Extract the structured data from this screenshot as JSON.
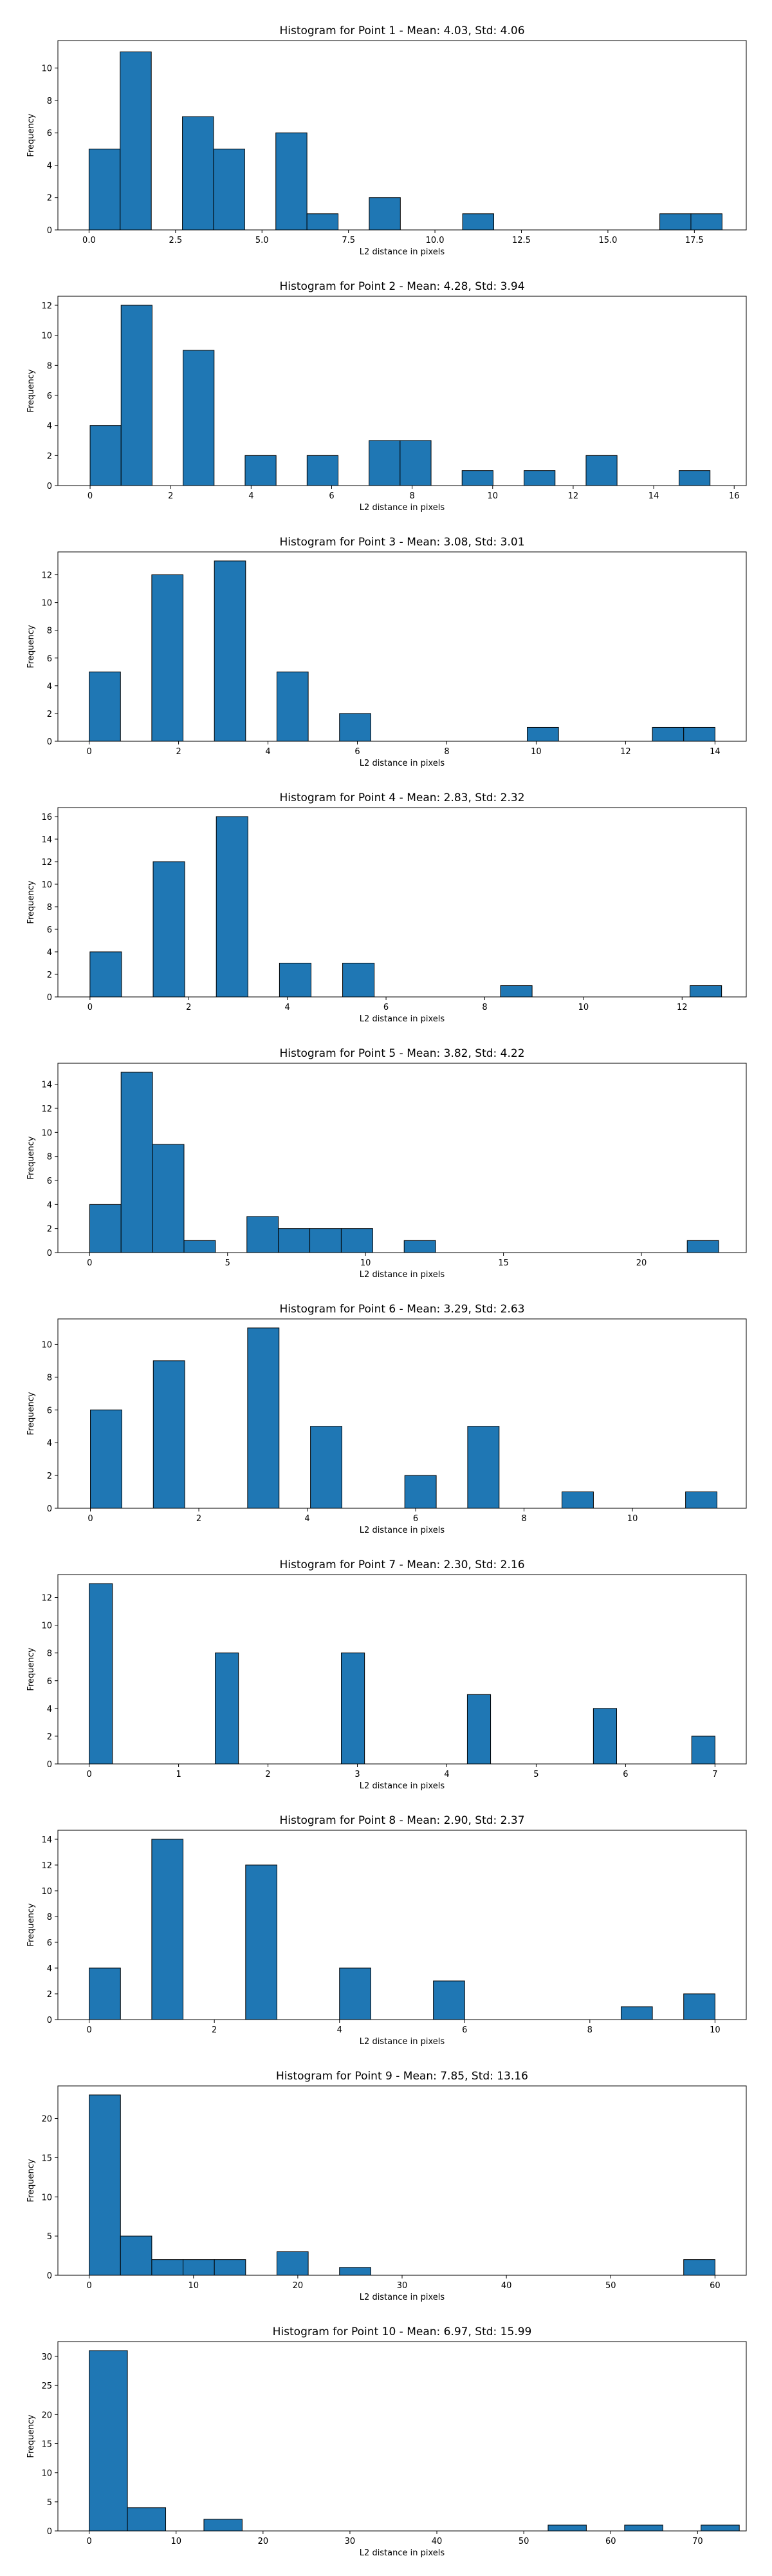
{
  "chart_data": [
    {
      "type": "bar",
      "title": "Histogram for Point 1 - Mean: 4.03, Std: 4.06",
      "xlabel": "L2 distance in pixels",
      "ylabel": "Frequency",
      "xlim": [
        -0.9,
        19.0
      ],
      "ylim": [
        0,
        11.7
      ],
      "xticks": [
        0.0,
        2.5,
        5.0,
        7.5,
        10.0,
        12.5,
        15.0,
        17.5
      ],
      "xtick_labels": [
        "0.0",
        "2.5",
        "5.0",
        "7.5",
        "10.0",
        "12.5",
        "15.0",
        "17.5"
      ],
      "yticks": [
        0,
        2,
        4,
        6,
        8,
        10
      ],
      "bin_start": 0.0,
      "bin_width": 0.9,
      "bins": [
        {
          "x": 0.0,
          "count": 5
        },
        {
          "x": 0.9,
          "count": 11
        },
        {
          "x": 2.7,
          "count": 7
        },
        {
          "x": 3.6,
          "count": 5
        },
        {
          "x": 5.4,
          "count": 6
        },
        {
          "x": 6.3,
          "count": 1
        },
        {
          "x": 8.1,
          "count": 2
        },
        {
          "x": 10.8,
          "count": 1
        },
        {
          "x": 16.5,
          "count": 1
        },
        {
          "x": 17.4,
          "count": 1
        }
      ]
    },
    {
      "type": "bar",
      "title": "Histogram for Point 2 - Mean: 4.28, Std: 3.94",
      "xlabel": "L2 distance in pixels",
      "ylabel": "Frequency",
      "xlim": [
        -0.8,
        16.3
      ],
      "ylim": [
        0,
        12.6
      ],
      "xticks": [
        0,
        2,
        4,
        6,
        8,
        10,
        12,
        14,
        16
      ],
      "xtick_labels": [
        "0",
        "2",
        "4",
        "6",
        "8",
        "10",
        "12",
        "14",
        "16"
      ],
      "yticks": [
        0,
        2,
        4,
        6,
        8,
        10,
        12
      ],
      "bin_start": 0,
      "bin_width": 0.77,
      "bins": [
        {
          "x": 0,
          "count": 4
        },
        {
          "x": 0.77,
          "count": 12
        },
        {
          "x": 2.31,
          "count": 9
        },
        {
          "x": 3.85,
          "count": 2
        },
        {
          "x": 5.39,
          "count": 2
        },
        {
          "x": 6.93,
          "count": 3
        },
        {
          "x": 7.7,
          "count": 3
        },
        {
          "x": 9.24,
          "count": 1
        },
        {
          "x": 10.78,
          "count": 1
        },
        {
          "x": 12.32,
          "count": 2
        },
        {
          "x": 14.63,
          "count": 1
        }
      ]
    },
    {
      "type": "bar",
      "title": "Histogram for Point 3 - Mean: 3.08, Std: 3.01",
      "xlabel": "L2 distance in pixels",
      "ylabel": "Frequency",
      "xlim": [
        -0.7,
        14.7
      ],
      "ylim": [
        0,
        13.65
      ],
      "xticks": [
        0,
        2,
        4,
        6,
        8,
        10,
        12,
        14
      ],
      "xtick_labels": [
        "0",
        "2",
        "4",
        "6",
        "8",
        "10",
        "12",
        "14"
      ],
      "yticks": [
        0,
        2,
        4,
        6,
        8,
        10,
        12
      ],
      "bin_start": 0,
      "bin_width": 0.7,
      "bins": [
        {
          "x": 0,
          "count": 5
        },
        {
          "x": 1.4,
          "count": 12
        },
        {
          "x": 2.8,
          "count": 13
        },
        {
          "x": 4.2,
          "count": 5
        },
        {
          "x": 5.6,
          "count": 2
        },
        {
          "x": 9.8,
          "count": 1
        },
        {
          "x": 12.6,
          "count": 1
        },
        {
          "x": 13.3,
          "count": 1
        }
      ]
    },
    {
      "type": "bar",
      "title": "Histogram for Point 4 - Mean: 2.83, Std: 2.32",
      "xlabel": "L2 distance in pixels",
      "ylabel": "Frequency",
      "xlim": [
        -0.65,
        13.3
      ],
      "ylim": [
        0,
        16.8
      ],
      "xticks": [
        0,
        2,
        4,
        6,
        8,
        10,
        12
      ],
      "xtick_labels": [
        "0",
        "2",
        "4",
        "6",
        "8",
        "10",
        "12"
      ],
      "yticks": [
        0,
        2,
        4,
        6,
        8,
        10,
        12,
        14,
        16
      ],
      "bin_start": 0,
      "bin_width": 0.64,
      "bins": [
        {
          "x": 0,
          "count": 4
        },
        {
          "x": 1.28,
          "count": 12
        },
        {
          "x": 2.56,
          "count": 16
        },
        {
          "x": 3.84,
          "count": 3
        },
        {
          "x": 5.12,
          "count": 3
        },
        {
          "x": 8.32,
          "count": 1
        },
        {
          "x": 12.16,
          "count": 1
        }
      ]
    },
    {
      "type": "bar",
      "title": "Histogram for Point 5 - Mean: 3.82, Std: 4.22",
      "xlabel": "L2 distance in pixels",
      "ylabel": "Frequency",
      "xlim": [
        -1.15,
        23.8
      ],
      "ylim": [
        0,
        15.75
      ],
      "xticks": [
        0,
        5,
        10,
        15,
        20
      ],
      "xtick_labels": [
        "0",
        "5",
        "10",
        "15",
        "20"
      ],
      "yticks": [
        0,
        2,
        4,
        6,
        8,
        10,
        12,
        14
      ],
      "bin_start": 0,
      "bin_width": 1.14,
      "bins": [
        {
          "x": 0,
          "count": 4
        },
        {
          "x": 1.14,
          "count": 15
        },
        {
          "x": 2.28,
          "count": 9
        },
        {
          "x": 3.42,
          "count": 1
        },
        {
          "x": 5.7,
          "count": 3
        },
        {
          "x": 6.84,
          "count": 2
        },
        {
          "x": 7.98,
          "count": 2
        },
        {
          "x": 9.12,
          "count": 2
        },
        {
          "x": 11.4,
          "count": 1
        },
        {
          "x": 21.66,
          "count": 1
        }
      ]
    },
    {
      "type": "bar",
      "title": "Histogram for Point 6 - Mean: 3.29, Std: 2.63",
      "xlabel": "L2 distance in pixels",
      "ylabel": "Frequency",
      "xlim": [
        -0.6,
        12.1
      ],
      "ylim": [
        0,
        11.55
      ],
      "xticks": [
        0,
        2,
        4,
        6,
        8,
        10
      ],
      "xtick_labels": [
        "0",
        "2",
        "4",
        "6",
        "8",
        "10"
      ],
      "yticks": [
        0,
        2,
        4,
        6,
        8,
        10
      ],
      "bin_start": 0,
      "bin_width": 0.58,
      "bins": [
        {
          "x": 0,
          "count": 6
        },
        {
          "x": 1.16,
          "count": 9
        },
        {
          "x": 2.9,
          "count": 11
        },
        {
          "x": 4.06,
          "count": 5
        },
        {
          "x": 5.8,
          "count": 2
        },
        {
          "x": 6.96,
          "count": 5
        },
        {
          "x": 8.7,
          "count": 1
        },
        {
          "x": 10.98,
          "count": 1
        }
      ]
    },
    {
      "type": "bar",
      "title": "Histogram for Point 7 - Mean: 2.30, Std: 2.16",
      "xlabel": "L2 distance in pixels",
      "ylabel": "Frequency",
      "xlim": [
        -0.35,
        7.35
      ],
      "ylim": [
        0,
        13.65
      ],
      "xticks": [
        0,
        1,
        2,
        3,
        4,
        5,
        6,
        7
      ],
      "xtick_labels": [
        "0",
        "1",
        "2",
        "3",
        "4",
        "5",
        "6",
        "7"
      ],
      "yticks": [
        0,
        2,
        4,
        6,
        8,
        10,
        12
      ],
      "bin_start": 0,
      "bin_width": 0.26,
      "bins": [
        {
          "x": 0,
          "count": 13
        },
        {
          "x": 1.41,
          "count": 8
        },
        {
          "x": 2.82,
          "count": 8
        },
        {
          "x": 4.23,
          "count": 5
        },
        {
          "x": 5.64,
          "count": 4
        },
        {
          "x": 6.74,
          "count": 2
        }
      ]
    },
    {
      "type": "bar",
      "title": "Histogram for Point 8 - Mean: 2.90, Std: 2.37",
      "xlabel": "L2 distance in pixels",
      "ylabel": "Frequency",
      "xlim": [
        -0.5,
        10.5
      ],
      "ylim": [
        0,
        14.7
      ],
      "xticks": [
        0,
        2,
        4,
        6,
        8,
        10
      ],
      "xtick_labels": [
        "0",
        "2",
        "4",
        "6",
        "8",
        "10"
      ],
      "yticks": [
        0,
        2,
        4,
        6,
        8,
        10,
        12,
        14
      ],
      "bin_start": 0,
      "bin_width": 0.5,
      "bins": [
        {
          "x": 0,
          "count": 4
        },
        {
          "x": 1.0,
          "count": 14
        },
        {
          "x": 2.5,
          "count": 12
        },
        {
          "x": 4.0,
          "count": 4
        },
        {
          "x": 5.5,
          "count": 3
        },
        {
          "x": 8.5,
          "count": 1
        },
        {
          "x": 9.5,
          "count": 2
        }
      ]
    },
    {
      "type": "bar",
      "title": "Histogram for Point 9 - Mean: 7.85, Std: 13.16",
      "xlabel": "L2 distance in pixels",
      "ylabel": "Frequency",
      "xlim": [
        -3.0,
        63.0
      ],
      "ylim": [
        0,
        24.15
      ],
      "xticks": [
        0,
        10,
        20,
        30,
        40,
        50,
        60
      ],
      "xtick_labels": [
        "0",
        "10",
        "20",
        "30",
        "40",
        "50",
        "60"
      ],
      "yticks": [
        0,
        5,
        10,
        15,
        20
      ],
      "bin_start": 0,
      "bin_width": 3.0,
      "bins": [
        {
          "x": 0,
          "count": 23
        },
        {
          "x": 3,
          "count": 5
        },
        {
          "x": 6,
          "count": 2
        },
        {
          "x": 9,
          "count": 2
        },
        {
          "x": 12,
          "count": 2
        },
        {
          "x": 18,
          "count": 3
        },
        {
          "x": 24,
          "count": 1
        },
        {
          "x": 57,
          "count": 2
        }
      ]
    },
    {
      "type": "bar",
      "title": "Histogram for Point 10 - Mean: 6.97, Std: 15.99",
      "xlabel": "L2 distance in pixels",
      "ylabel": "Frequency",
      "xlim": [
        -3.6,
        75.6
      ],
      "ylim": [
        0,
        32.55
      ],
      "xticks": [
        0,
        10,
        20,
        30,
        40,
        50,
        60,
        70
      ],
      "xtick_labels": [
        "0",
        "10",
        "20",
        "30",
        "40",
        "50",
        "60",
        "70"
      ],
      "yticks": [
        0,
        5,
        10,
        15,
        20,
        25,
        30
      ],
      "bin_start": 0,
      "bin_width": 4.4,
      "bins": [
        {
          "x": 0,
          "count": 31
        },
        {
          "x": 4.4,
          "count": 4
        },
        {
          "x": 13.2,
          "count": 2
        },
        {
          "x": 61.6,
          "count": 1
        },
        {
          "x": 70.4,
          "count": 1
        },
        {
          "x": 52.8,
          "count": 1
        }
      ]
    }
  ]
}
